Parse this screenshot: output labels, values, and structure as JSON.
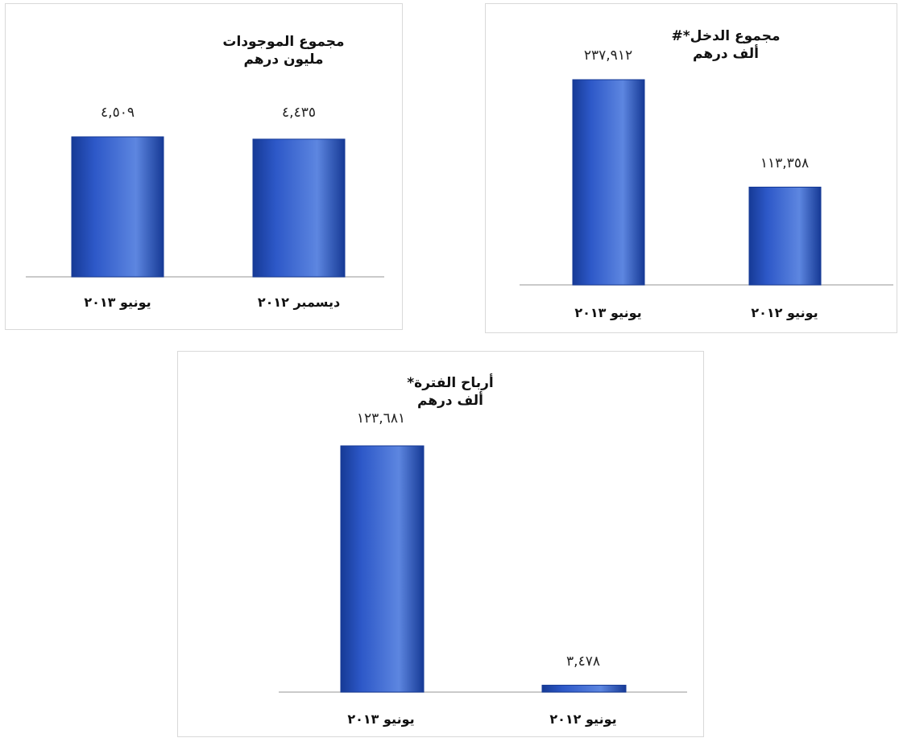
{
  "colors": {
    "bar": "#2d58c8",
    "bar_dark": "#163a96",
    "bar_light": "#5d86e0",
    "axis": "#b8b8b8"
  },
  "charts": [
    {
      "title_line1": "مجموع الموجودات",
      "title_line2": "مليون درهم",
      "cat_1": "يونيو ٢٠١٣",
      "cat_2": "ديسمبر ٢٠١٢",
      "val_1": "٤,٥٠٩",
      "val_2": "٤,٤٣٥"
    },
    {
      "title_line1": "مجموع الدخل*#",
      "title_line2": "ألف درهم",
      "cat_1": "يونيو ٢٠١٣",
      "cat_2": "يونيو ٢٠١٢",
      "val_1": "٢٣٧,٩١٢",
      "val_2": "١١٣,٣٥٨"
    },
    {
      "title_line1": "أرباح الفترة*",
      "title_line2": "ألف درهم",
      "cat_1": "يونيو ٢٠١٣",
      "cat_2": "يونيو ٢٠١٢",
      "val_1": "١٢٣,٦٨١",
      "val_2": "٣,٤٧٨"
    }
  ],
  "chart_data": [
    {
      "type": "bar",
      "title": "مجموع الموجودات",
      "ylabel": "مليون درهم",
      "categories": [
        "يونيو ٢٠١٣",
        "ديسمبر ٢٠١٢"
      ],
      "values": [
        4509,
        4435
      ],
      "ylim": [
        0,
        6000
      ],
      "grid": false
    },
    {
      "type": "bar",
      "title": "مجموع الدخل*#",
      "ylabel": "ألف درهم",
      "categories": [
        "يونيو ٢٠١٣",
        "يونيو ٢٠١٢"
      ],
      "values": [
        237912,
        113358
      ],
      "ylim": [
        0,
        260000
      ],
      "grid": false
    },
    {
      "type": "bar",
      "title": "أرباح الفترة*",
      "ylabel": "ألف درهم",
      "categories": [
        "يونيو ٢٠١٣",
        "يونيو ٢٠١٢"
      ],
      "values": [
        123681,
        3478
      ],
      "ylim": [
        0,
        140000
      ],
      "grid": false
    }
  ]
}
